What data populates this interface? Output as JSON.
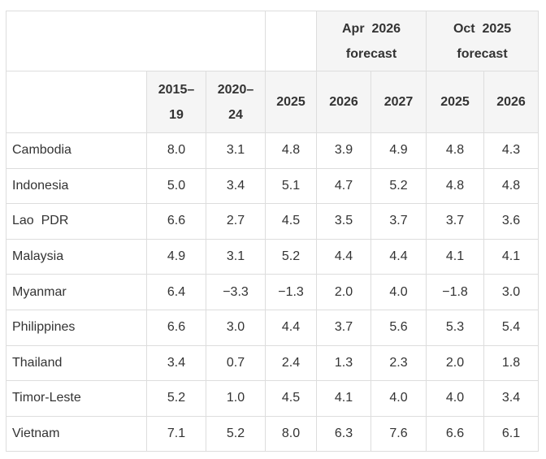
{
  "table": {
    "group_headers": [
      {
        "label": "Apr 2026 forecast",
        "line1": "Apr  2026",
        "line2": "forecast"
      },
      {
        "label": "Oct 2025 forecast",
        "line1": "Oct  2025",
        "line2": "forecast"
      }
    ],
    "year_headers": [
      {
        "line1": "2015–",
        "line2": "19"
      },
      {
        "line1": "2020–",
        "line2": "24"
      },
      {
        "line1": "2025"
      },
      {
        "line1": "2026"
      },
      {
        "line1": "2027"
      },
      {
        "line1": "2025"
      },
      {
        "line1": "2026"
      }
    ],
    "rows": [
      {
        "country": "Cambodia",
        "values": [
          "8.0",
          "3.1",
          "4.8",
          "3.9",
          "4.9",
          "4.8",
          "4.3"
        ]
      },
      {
        "country": "Indonesia",
        "values": [
          "5.0",
          "3.4",
          "5.1",
          "4.7",
          "5.2",
          "4.8",
          "4.8"
        ]
      },
      {
        "country": "Lao  PDR",
        "values": [
          "6.6",
          "2.7",
          "4.5",
          "3.5",
          "3.7",
          "3.7",
          "3.6"
        ]
      },
      {
        "country": "Malaysia",
        "values": [
          "4.9",
          "3.1",
          "5.2",
          "4.4",
          "4.4",
          "4.1",
          "4.1"
        ]
      },
      {
        "country": "Myanmar",
        "values": [
          "6.4",
          "−3.3",
          "−1.3",
          "2.0",
          "4.0",
          "−1.8",
          "3.0"
        ]
      },
      {
        "country": "Philippines",
        "values": [
          "6.6",
          "3.0",
          "4.4",
          "3.7",
          "5.6",
          "5.3",
          "5.4"
        ]
      },
      {
        "country": "Thailand",
        "values": [
          "3.4",
          "0.7",
          "2.4",
          "1.3",
          "2.3",
          "2.0",
          "1.8"
        ]
      },
      {
        "country": "Timor-Leste",
        "values": [
          "5.2",
          "1.0",
          "4.5",
          "4.1",
          "4.0",
          "4.0",
          "3.4"
        ]
      },
      {
        "country": "Vietnam",
        "values": [
          "7.1",
          "5.2",
          "8.0",
          "6.3",
          "7.6",
          "6.6",
          "6.1"
        ]
      }
    ]
  }
}
